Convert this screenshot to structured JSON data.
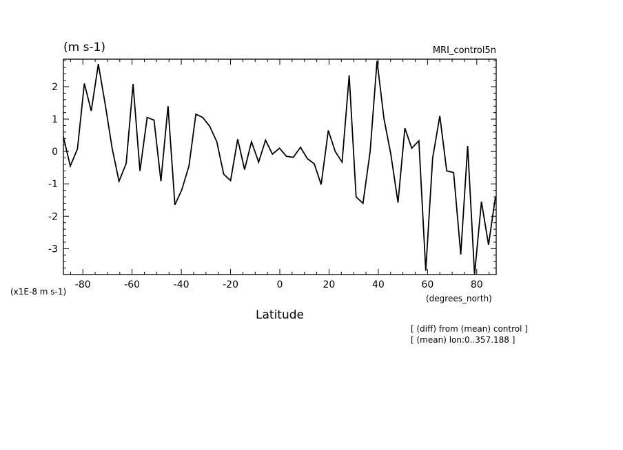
{
  "chart_data": {
    "type": "line",
    "title_left": "(m s-1)",
    "title_right": "MRI_control5n",
    "xlabel": "Latitude",
    "x_units": "(degrees_north)",
    "y_units": "(x1E-8 m s-1)",
    "xlim": [
      -87.9,
      87.9
    ],
    "ylim": [
      -3.8,
      2.85
    ],
    "x_ticks": [
      -80,
      -60,
      -40,
      -20,
      0,
      20,
      40,
      60,
      80
    ],
    "x_tick_labels": [
      "-80",
      "-60",
      "-40",
      "-20",
      "0",
      "20",
      "40",
      "60",
      "80"
    ],
    "y_ticks": [
      -3,
      -2,
      -1,
      0,
      1,
      2
    ],
    "y_tick_labels": [
      "-3",
      "-2",
      "-1",
      "0",
      "1",
      "2"
    ],
    "notes": [
      "[ (diff) from (mean) control ]",
      "[ (mean) lon:0..357.188 ]"
    ],
    "series": [
      {
        "x": [
          -87.9,
          -85.1,
          -82.2,
          -79.4,
          -76.6,
          -73.7,
          -70.9,
          -68.1,
          -65.3,
          -62.4,
          -59.6,
          -56.8,
          -53.9,
          -51.1,
          -48.3,
          -45.4,
          -42.6,
          -39.8,
          -36.9,
          -34.1,
          -31.3,
          -28.5,
          -25.6,
          -22.8,
          -20.0,
          -17.1,
          -14.3,
          -11.5,
          -8.6,
          -5.8,
          -3.0,
          -0.1,
          2.7,
          5.5,
          8.4,
          11.2,
          14.0,
          16.8,
          19.7,
          22.5,
          25.3,
          28.2,
          31.0,
          33.8,
          36.7,
          39.5,
          42.3,
          45.1,
          48.0,
          50.8,
          53.6,
          56.5,
          59.3,
          62.1,
          65.0,
          67.8,
          70.6,
          73.5,
          76.3,
          79.1,
          81.9,
          84.8,
          87.6
        ],
        "y": [
          0.45,
          -0.45,
          0.08,
          2.1,
          1.25,
          2.7,
          1.45,
          0.1,
          -0.92,
          -0.37,
          2.08,
          -0.6,
          1.05,
          0.97,
          -0.92,
          1.4,
          -1.65,
          -1.18,
          -0.45,
          1.15,
          1.05,
          0.78,
          0.3,
          -0.7,
          -0.9,
          0.38,
          -0.56,
          0.3,
          -0.33,
          0.35,
          -0.08,
          0.1,
          -0.15,
          -0.18,
          0.13,
          -0.22,
          -0.38,
          -1.02,
          0.65,
          0.0,
          -0.33,
          2.35,
          -1.4,
          -1.6,
          0.0,
          2.8,
          1.02,
          -0.08,
          -1.58,
          0.72,
          0.1,
          0.33,
          -3.68,
          -0.2,
          1.1,
          -0.6,
          -0.65,
          -3.18,
          0.17,
          -3.8,
          -1.55,
          -2.88,
          -1.4
        ]
      }
    ]
  }
}
